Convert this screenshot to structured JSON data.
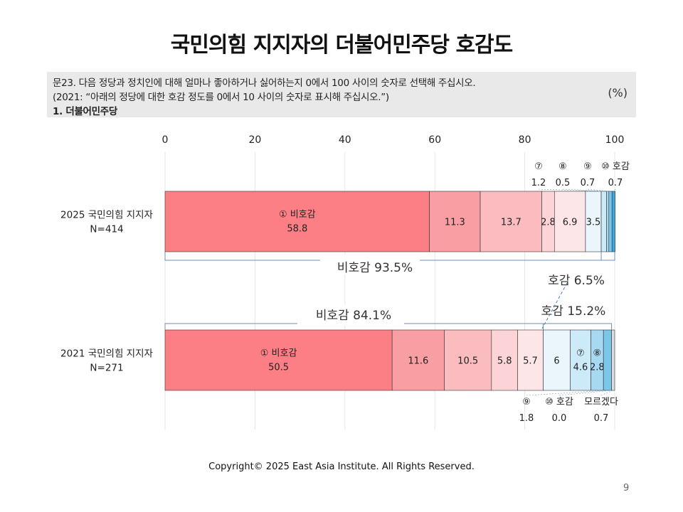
{
  "title": "국민의힘 지지자의 더불어민주당 호감도",
  "question": {
    "line1": "문23. 다음 정당과 정치인에 대해 얼마나 좋아하거나 싫어하는지 0에서 100 사이의 숫자로 선택해 주십시오.",
    "line2": "(2021: “아래의 정당에 대한 호감 정도를 0에서 10 사이의 숫자로 표시해 주십시오.”)",
    "line3": "1. 더불어민주당",
    "unit": "(%)"
  },
  "chart_data": {
    "type": "bar",
    "orientation": "horizontal-stacked-100",
    "xlim": [
      0,
      100
    ],
    "xticks": [
      "0",
      "20",
      "40",
      "60",
      "80",
      "100"
    ],
    "colors": [
      "#fc7f86",
      "#f99ea2",
      "#fbbcbf",
      "#fcd4d7",
      "#fde6e8",
      "#eaf6fc",
      "#cdeaf8",
      "#a8d9f2",
      "#7cc6ea",
      "#3fa7dc",
      "#dddddd"
    ],
    "rows": [
      {
        "label_line1": "2025 국민의힘 지지자",
        "label_line2": "N=414",
        "segments": [
          {
            "value": 58.8,
            "label": "58.8",
            "name": "① 비호감"
          },
          {
            "value": 11.3,
            "label": "11.3"
          },
          {
            "value": 13.7,
            "label": "13.7"
          },
          {
            "value": 2.8,
            "label": "2.8"
          },
          {
            "value": 6.9,
            "label": "6.9"
          },
          {
            "value": 3.5,
            "label": "3.5"
          },
          {
            "value": 1.2,
            "label": ""
          },
          {
            "value": 0.5,
            "label": ""
          },
          {
            "value": 0.7,
            "label": ""
          },
          {
            "value": 0.7,
            "label": ""
          }
        ],
        "callouts_above": [
          {
            "name": "⑦",
            "value": "1.2"
          },
          {
            "name": "⑧",
            "value": "0.5"
          },
          {
            "name": "⑨",
            "value": "0.7"
          },
          {
            "name": "⑩ 호감",
            "value": "0.7"
          }
        ],
        "summary_neg": "비호감 93.5%",
        "summary_pos": "호감 6.5%"
      },
      {
        "label_line1": "2021 국민의힘 지지자",
        "label_line2": "N=271",
        "segments": [
          {
            "value": 50.5,
            "label": "50.5",
            "name": "① 비호감"
          },
          {
            "value": 11.6,
            "label": "11.6"
          },
          {
            "value": 10.5,
            "label": "10.5"
          },
          {
            "value": 5.8,
            "label": "5.8"
          },
          {
            "value": 5.7,
            "label": "5.7"
          },
          {
            "value": 6.0,
            "label": "6"
          },
          {
            "value": 4.6,
            "label": "4.6",
            "name": "⑦"
          },
          {
            "value": 2.8,
            "label": "2.8",
            "name": "⑧"
          },
          {
            "value": 1.8,
            "label": ""
          },
          {
            "value": 0.0,
            "label": ""
          },
          {
            "value": 0.7,
            "label": ""
          }
        ],
        "callouts_below": [
          {
            "name": "⑨",
            "value": "1.8"
          },
          {
            "name": "⑩ 호감",
            "value": "0.0"
          },
          {
            "name": "모르겠다",
            "value": "0.7"
          }
        ],
        "summary_neg": "비호감 84.1%",
        "summary_pos": "호감 15.2%"
      }
    ]
  },
  "footer": {
    "copyright": "Copyright© 2025 East Asia Institute. All Rights Reserved.",
    "page": "9"
  }
}
